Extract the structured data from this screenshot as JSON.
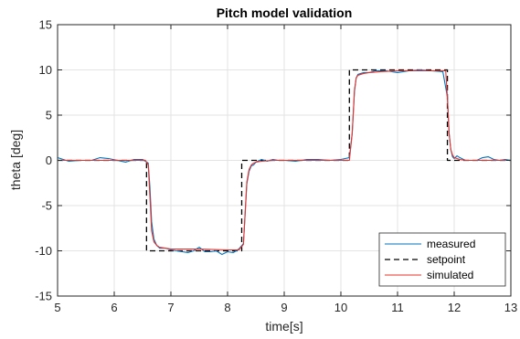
{
  "chart_data": {
    "type": "line",
    "title": "Pitch model validation",
    "xlabel": "time[s]",
    "ylabel": "theta [deg]",
    "xlim": [
      5,
      13
    ],
    "ylim": [
      -15,
      15
    ],
    "xticks": [
      5,
      6,
      7,
      8,
      9,
      10,
      11,
      12,
      13
    ],
    "yticks": [
      -15,
      -10,
      -5,
      0,
      5,
      10,
      15
    ],
    "grid": true,
    "legend_position": "bottom-right",
    "series": [
      {
        "name": "measured",
        "color": "#0072bd",
        "style": "solid",
        "x": [
          5.0,
          5.1,
          5.2,
          5.4,
          5.6,
          5.75,
          5.9,
          6.05,
          6.2,
          6.35,
          6.5,
          6.6,
          6.63,
          6.66,
          6.7,
          6.75,
          6.8,
          6.9,
          7.0,
          7.1,
          7.2,
          7.3,
          7.4,
          7.5,
          7.6,
          7.7,
          7.8,
          7.9,
          8.0,
          8.1,
          8.2,
          8.28,
          8.31,
          8.34,
          8.38,
          8.42,
          8.46,
          8.5,
          8.6,
          8.7,
          8.8,
          8.9,
          9.0,
          9.2,
          9.4,
          9.6,
          9.8,
          10.0,
          10.15,
          10.2,
          10.24,
          10.27,
          10.3,
          10.35,
          10.4,
          10.5,
          10.6,
          10.8,
          11.0,
          11.2,
          11.4,
          11.6,
          11.8,
          11.88,
          11.91,
          11.94,
          11.97,
          12.0,
          12.05,
          12.1,
          12.2,
          12.3,
          12.4,
          12.5,
          12.6,
          12.7,
          12.8,
          12.9,
          13.0
        ],
        "y": [
          0.3,
          0.1,
          -0.1,
          0.0,
          0.0,
          0.3,
          0.2,
          0.0,
          -0.2,
          0.1,
          0.1,
          -0.3,
          -3.0,
          -6.8,
          -8.7,
          -9.4,
          -9.7,
          -9.7,
          -9.9,
          -10.0,
          -10.1,
          -10.2,
          -10.0,
          -9.6,
          -10.1,
          -10.1,
          -10.0,
          -10.4,
          -10.1,
          -10.2,
          -9.8,
          -9.2,
          -6.0,
          -2.6,
          -1.2,
          -0.6,
          -0.5,
          -0.2,
          0.1,
          -0.1,
          0.1,
          0.0,
          0.0,
          -0.1,
          0.1,
          0.1,
          0.0,
          0.1,
          0.3,
          3.0,
          7.6,
          9.1,
          9.5,
          9.6,
          9.7,
          9.7,
          9.9,
          9.9,
          9.7,
          9.9,
          10.0,
          9.9,
          9.8,
          7.0,
          3.0,
          1.2,
          0.4,
          0.2,
          0.5,
          0.3,
          0.0,
          0.0,
          0.0,
          0.3,
          0.4,
          0.1,
          0.0,
          0.1,
          0.0
        ]
      },
      {
        "name": "setpoint",
        "color": "#000000",
        "style": "dashed",
        "x": [
          5.0,
          6.57,
          6.57,
          8.25,
          8.25,
          10.15,
          10.15,
          11.88,
          11.88,
          13.0
        ],
        "y": [
          0,
          0,
          -10,
          -10,
          0,
          0,
          10,
          10,
          0,
          0
        ]
      },
      {
        "name": "simulated",
        "color": "#e8302a",
        "style": "solid",
        "x": [
          5.0,
          6.55,
          6.6,
          6.63,
          6.66,
          6.7,
          6.75,
          6.8,
          6.9,
          7.0,
          7.5,
          8.0,
          8.2,
          8.28,
          8.31,
          8.34,
          8.38,
          8.42,
          8.46,
          8.5,
          8.6,
          8.8,
          9.0,
          10.0,
          10.15,
          10.2,
          10.24,
          10.27,
          10.3,
          10.35,
          10.4,
          10.5,
          10.7,
          11.0,
          11.5,
          11.85,
          11.88,
          11.91,
          11.94,
          11.97,
          12.0,
          12.05,
          12.1,
          12.2,
          12.4,
          13.0
        ],
        "y": [
          0.0,
          0.0,
          -0.5,
          -4.0,
          -7.8,
          -9.0,
          -9.4,
          -9.6,
          -9.7,
          -9.8,
          -9.8,
          -9.9,
          -9.9,
          -9.3,
          -5.8,
          -2.4,
          -1.0,
          -0.5,
          -0.3,
          -0.2,
          -0.1,
          0.0,
          0.0,
          0.0,
          0.0,
          3.0,
          7.8,
          9.1,
          9.4,
          9.5,
          9.6,
          9.7,
          9.8,
          9.9,
          9.9,
          9.9,
          7.0,
          3.0,
          1.2,
          0.6,
          0.3,
          0.2,
          0.1,
          0.0,
          0.0,
          0.0
        ]
      }
    ]
  }
}
